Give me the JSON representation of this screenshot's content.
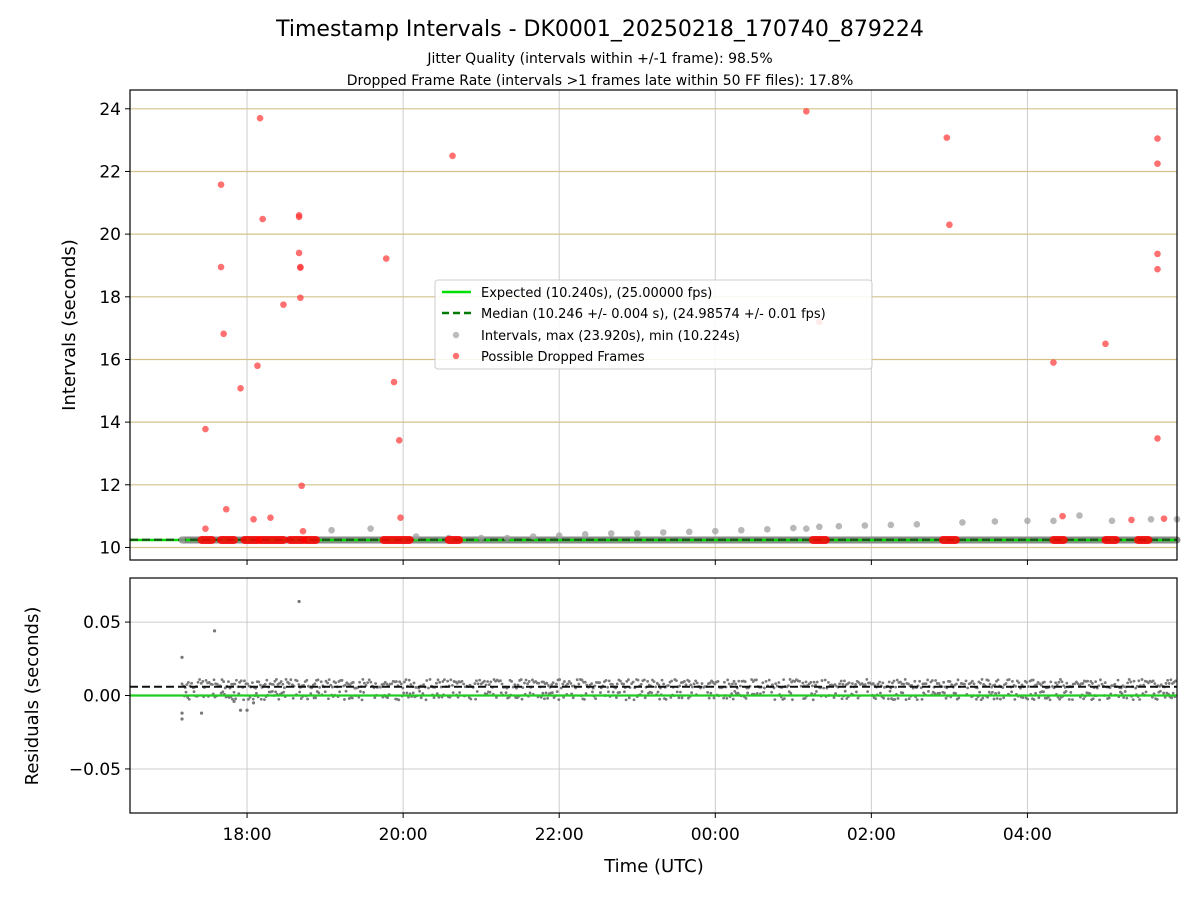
{
  "chart_data": [
    {
      "type": "scatter",
      "panel": "top",
      "title": "Timestamp Intervals - DK0001_20250218_170740_879224",
      "subtitle_lines": [
        "Jitter Quality (intervals within +/-1 frame): 98.5%",
        "Dropped Frame Rate (intervals >1 frames late within 50 FF files): 17.8%"
      ],
      "xlabel": "",
      "ylabel": "Intervals (seconds)",
      "x_axis": "time",
      "xlim": [
        "16:30",
        "05:55"
      ],
      "ylim": [
        9.6,
        24.6
      ],
      "yticks": [
        10,
        12,
        14,
        16,
        18,
        20,
        22,
        24
      ],
      "ytick_labels": [
        "10",
        "12",
        "14",
        "16",
        "18",
        "20",
        "22",
        "24"
      ],
      "xgrid": true,
      "ygrid": true,
      "ygrid_color": "#d4c28a",
      "legend_placement": "center",
      "legend": [
        "Expected (10.240s), (25.00000 fps)",
        "Median (10.246 +/- 0.004 s), (24.98574 +/- 0.01 fps)",
        "Intervals, max (23.920s), min (10.224s)",
        "Possible Dropped Frames"
      ],
      "expected_value": 10.24,
      "median_value": 10.246,
      "series": [
        {
          "name": "Intervals, max (23.920s), min (10.224s)",
          "color": "#a0a0a0",
          "x": [
            "17:10",
            "19:05",
            "19:35",
            "20:10",
            "20:35",
            "21:00",
            "21:20",
            "21:40",
            "22:00",
            "22:20",
            "22:40",
            "23:00",
            "23:20",
            "23:40",
            "00:00",
            "00:20",
            "00:40",
            "01:00",
            "01:10",
            "01:20",
            "01:35",
            "01:55",
            "02:15",
            "02:35",
            "03:10",
            "03:35",
            "04:00",
            "04:20",
            "04:40",
            "05:05",
            "05:35",
            "05:55"
          ],
          "y": [
            10.24,
            10.55,
            10.6,
            10.35,
            10.3,
            10.3,
            10.3,
            10.35,
            10.38,
            10.42,
            10.45,
            10.45,
            10.48,
            10.5,
            10.52,
            10.55,
            10.58,
            10.62,
            10.6,
            10.66,
            10.68,
            10.7,
            10.72,
            10.74,
            10.8,
            10.83,
            10.85,
            10.85,
            11.02,
            10.85,
            10.9,
            10.9
          ]
        },
        {
          "name": "Possible Dropped Frames",
          "color": "#ff3333",
          "x": [
            "17:28",
            "17:28",
            "17:40",
            "17:40",
            "17:42",
            "17:44",
            "17:55",
            "18:05",
            "18:08",
            "18:10",
            "18:12",
            "18:18",
            "18:28",
            "18:40",
            "18:40",
            "18:40",
            "18:41",
            "18:41",
            "18:41",
            "18:42",
            "18:43",
            "19:47",
            "19:53",
            "19:57",
            "19:58",
            "20:38",
            "01:10",
            "01:20",
            "02:58",
            "03:00",
            "04:20",
            "04:27",
            "05:00",
            "05:20",
            "05:40",
            "05:40",
            "05:40",
            "05:40",
            "05:40",
            "05:45"
          ],
          "y": [
            13.78,
            10.6,
            21.58,
            18.95,
            16.82,
            11.22,
            15.08,
            10.9,
            15.8,
            23.7,
            20.48,
            10.95,
            17.75,
            20.6,
            20.55,
            19.4,
            18.95,
            18.93,
            17.97,
            11.97,
            10.52,
            19.22,
            15.28,
            13.42,
            10.95,
            22.5,
            23.92,
            17.2,
            23.08,
            20.3,
            15.9,
            11.0,
            16.5,
            10.88,
            23.05,
            22.25,
            19.37,
            18.88,
            13.48,
            10.92
          ]
        },
        {
          "name": "Possible Dropped Frames",
          "color": "#ff0000",
          "note_baseline": "",
          "x_ranges": [
            [
              "17:25",
              "17:33"
            ],
            [
              "17:40",
              "17:50"
            ],
            [
              "17:58",
              "18:08"
            ],
            [
              "18:10",
              "18:28"
            ],
            [
              "18:33",
              "18:43"
            ],
            [
              "18:45",
              "18:53"
            ],
            [
              "19:45",
              "20:05"
            ],
            [
              "20:35",
              "20:43"
            ],
            [
              "01:15",
              "01:25"
            ],
            [
              "02:55",
              "03:05"
            ],
            [
              "04:20",
              "04:28"
            ],
            [
              "05:00",
              "05:08"
            ],
            [
              "05:25",
              "05:33"
            ]
          ],
          "y": 10.24
        }
      ]
    },
    {
      "type": "scatter",
      "panel": "bottom",
      "title": "",
      "xlabel": "Time (UTC)",
      "ylabel": "Residuals (seconds)",
      "x_axis": "time",
      "xlim": [
        "16:30",
        "05:55"
      ],
      "ylim": [
        -0.08,
        0.08
      ],
      "yticks": [
        -0.05,
        0.0,
        0.05
      ],
      "ytick_labels": [
        "−0.05",
        "0.00",
        "0.05"
      ],
      "xticks": [
        "18:00",
        "20:00",
        "22:00",
        "00:00",
        "02:00",
        "04:00"
      ],
      "xtick_labels": [
        "18:00",
        "20:00",
        "22:00",
        "00:00",
        "02:00",
        "04:00"
      ],
      "xgrid": true,
      "ygrid": true,
      "expected_residual": 0.0,
      "median_residual": 0.006,
      "residual_band": {
        "start": "17:10",
        "end": "05:55",
        "upper_level": 0.008,
        "lower_level": 0.0,
        "spread": 0.006
      },
      "series": [
        {
          "name": "",
          "color": "#777777",
          "x": [
            "17:10",
            "17:10",
            "17:10",
            "17:25",
            "17:35",
            "18:40",
            "17:50",
            "17:55",
            "18:00",
            "18:05"
          ],
          "y": [
            0.026,
            -0.016,
            -0.012,
            -0.012,
            0.044,
            0.064,
            -0.004,
            -0.01,
            -0.01,
            -0.005
          ]
        }
      ]
    }
  ]
}
